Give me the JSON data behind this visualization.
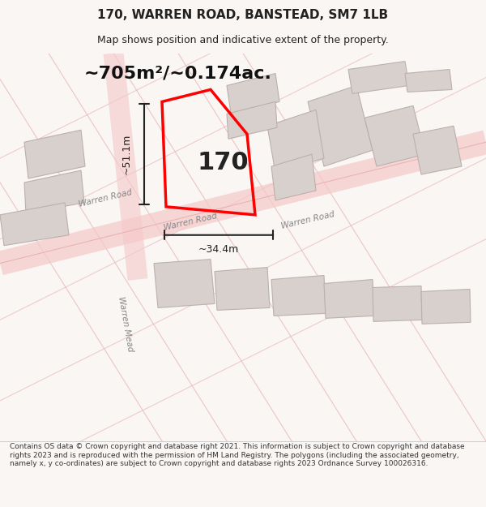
{
  "title": "170, WARREN ROAD, BANSTEAD, SM7 1LB",
  "subtitle": "Map shows position and indicative extent of the property.",
  "area_label": "~705m²/~0.174ac.",
  "number_label": "170",
  "dim_h": "~51.1m",
  "dim_w": "~34.4m",
  "footer": "Contains OS data © Crown copyright and database right 2021. This information is subject to Crown copyright and database rights 2023 and is reproduced with the permission of HM Land Registry. The polygons (including the associated geometry, namely x, y co-ordinates) are subject to Crown copyright and database rights 2023 Ordnance Survey 100026316.",
  "bg_color": "#f9f6f4",
  "map_bg": "#f5f0ee",
  "road_color": "#f5c8c8",
  "building_color": "#d8d0cc",
  "road_line_color": "#e8b0b0",
  "highlight_color": "#ff0000",
  "street_label_color": "#888888",
  "dim_color": "#222222",
  "title_color": "#222222",
  "area_color": "#111111"
}
